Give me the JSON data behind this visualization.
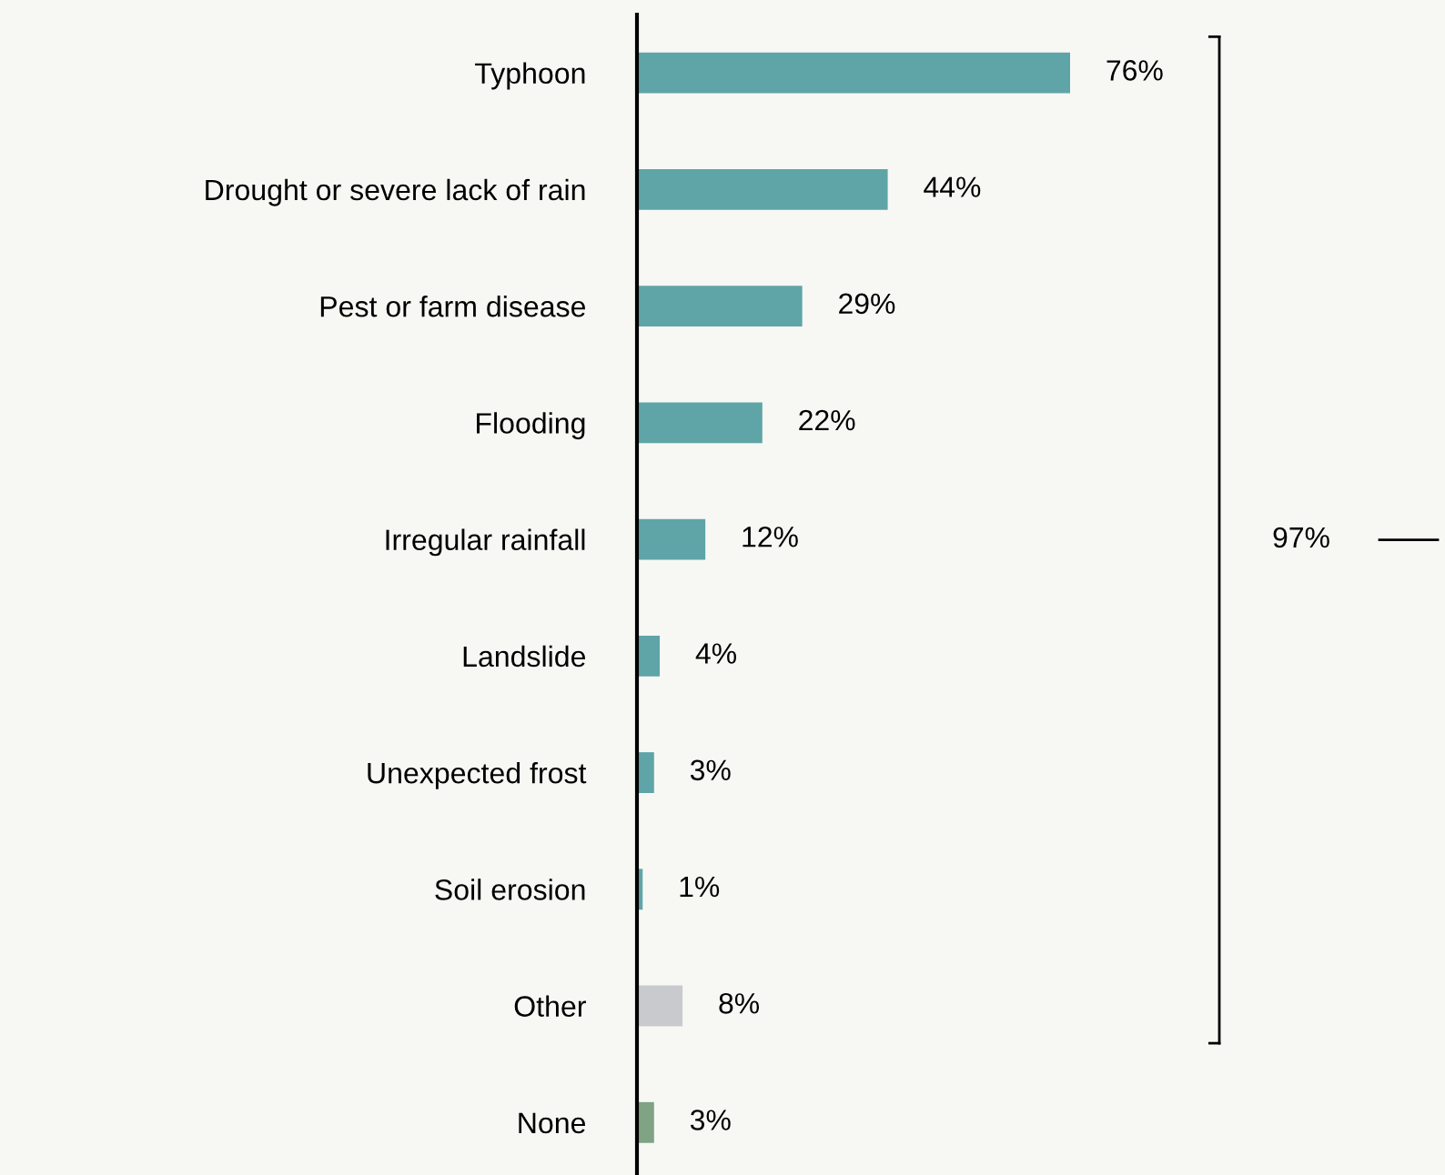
{
  "chart_data": {
    "type": "bar",
    "orientation": "horizontal",
    "categories": [
      "Typhoon",
      "Drought or severe lack of rain",
      "Pest or farm disease",
      "Flooding",
      "Irregular rainfall",
      "Landslide",
      "Unexpected frost",
      "Soil erosion",
      "Other",
      "None"
    ],
    "values": [
      76,
      44,
      29,
      22,
      12,
      4,
      3,
      1,
      8,
      3
    ],
    "colors": [
      "#5fa5a8",
      "#5fa5a8",
      "#5fa5a8",
      "#5fa5a8",
      "#5fa5a8",
      "#5fa5a8",
      "#5fa5a8",
      "#5fa5a8",
      "#c9cacd",
      "#7fa383"
    ],
    "value_labels": [
      "76%",
      "44%",
      "29%",
      "22%",
      "12%",
      "4%",
      "3%",
      "1%",
      "8%",
      "3%"
    ],
    "annotations": [
      "97%"
    ],
    "grid": false,
    "legend": false
  }
}
